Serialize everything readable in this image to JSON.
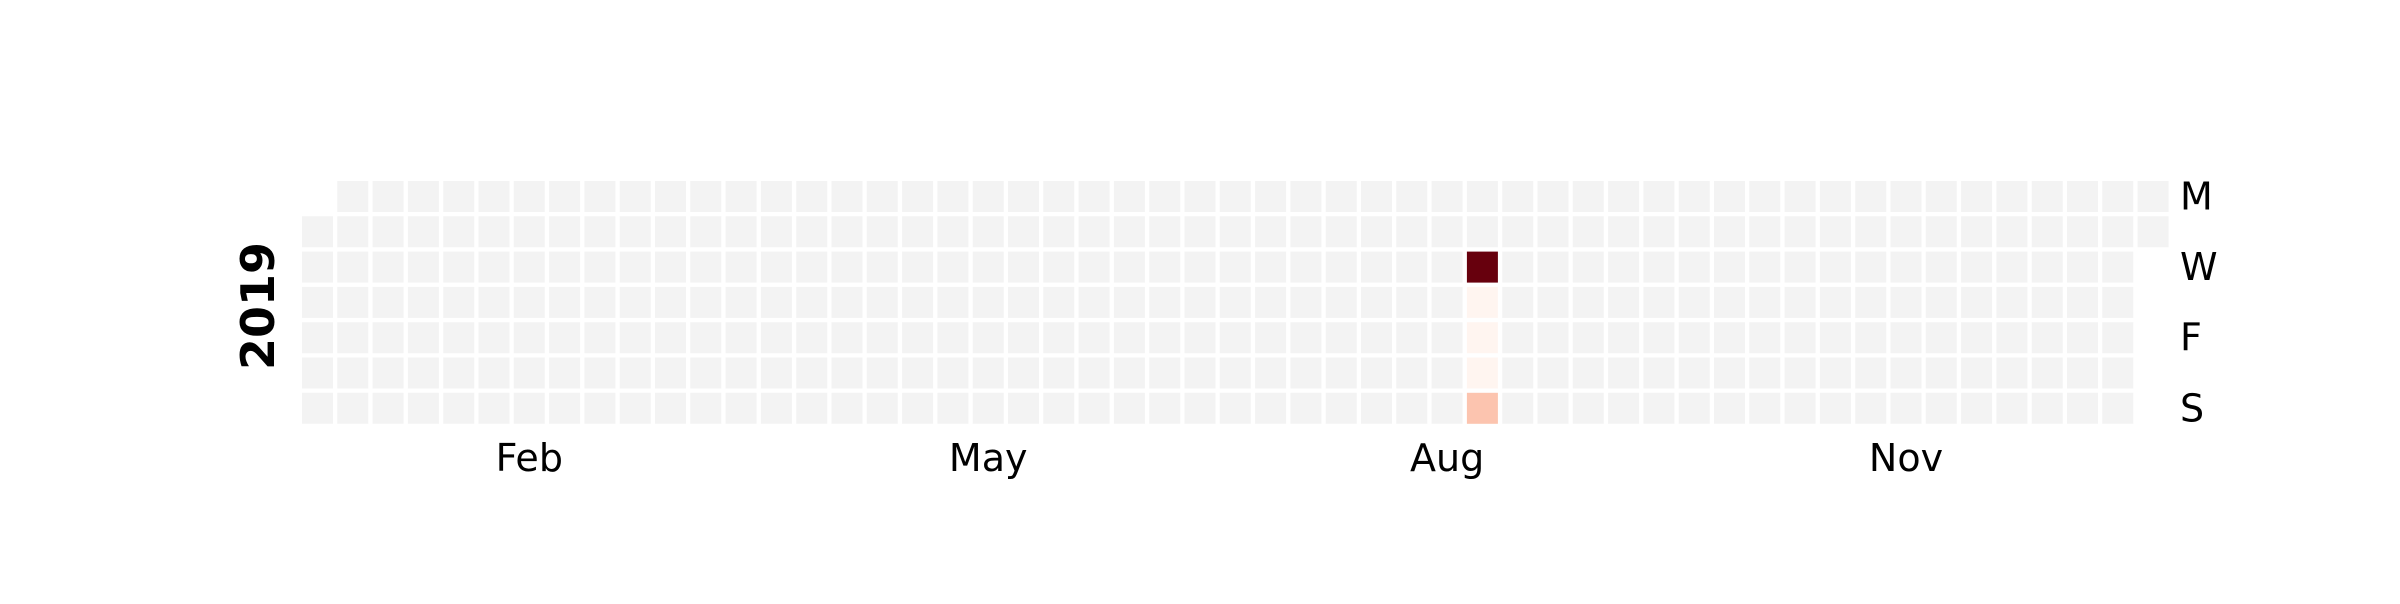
{
  "chart_data": {
    "type": "heatmap",
    "year": "2019",
    "row_labels": [
      "M",
      "",
      "W",
      "",
      "F",
      "",
      "S"
    ],
    "month_labels": [
      "Feb",
      "May",
      "Aug",
      "Nov"
    ],
    "empty_color": "#f3f3f3",
    "colormap": "Reds",
    "cells": [
      {
        "date": "2019-08-21",
        "value": 1.0,
        "color": "#67000d"
      },
      {
        "date": "2019-08-22",
        "value": 0.03,
        "color": "#fff5f0"
      },
      {
        "date": "2019-08-23",
        "value": 0.03,
        "color": "#fff5f0"
      },
      {
        "date": "2019-08-24",
        "value": 0.03,
        "color": "#fff5f0"
      },
      {
        "date": "2019-08-25",
        "value": 0.2,
        "color": "#fcc4af"
      }
    ]
  }
}
